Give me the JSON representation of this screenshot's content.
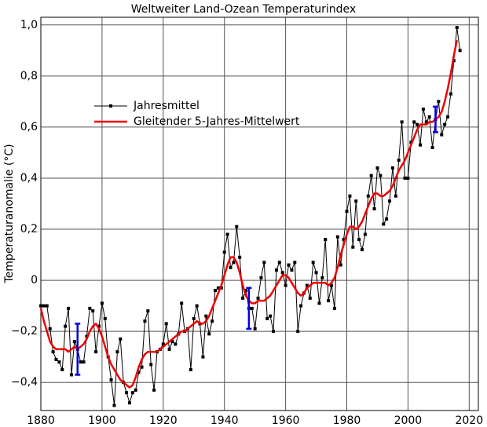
{
  "chart_data": {
    "type": "line",
    "title": "Weltweiter Land-Ozean Temperaturindex",
    "y_label": "Temperaturanomalie (°C)",
    "x": [
      1880,
      1881,
      1882,
      1883,
      1884,
      1885,
      1886,
      1887,
      1888,
      1889,
      1890,
      1891,
      1892,
      1893,
      1894,
      1895,
      1896,
      1897,
      1898,
      1899,
      1900,
      1901,
      1902,
      1903,
      1904,
      1905,
      1906,
      1907,
      1908,
      1909,
      1910,
      1911,
      1912,
      1913,
      1914,
      1915,
      1916,
      1917,
      1918,
      1919,
      1920,
      1921,
      1922,
      1923,
      1924,
      1925,
      1926,
      1927,
      1928,
      1929,
      1930,
      1931,
      1932,
      1933,
      1934,
      1935,
      1936,
      1937,
      1938,
      1939,
      1940,
      1941,
      1942,
      1943,
      1944,
      1945,
      1946,
      1947,
      1948,
      1949,
      1950,
      1951,
      1952,
      1953,
      1954,
      1955,
      1956,
      1957,
      1958,
      1959,
      1960,
      1961,
      1962,
      1963,
      1964,
      1965,
      1966,
      1967,
      1968,
      1969,
      1970,
      1971,
      1972,
      1973,
      1974,
      1975,
      1976,
      1977,
      1978,
      1979,
      1980,
      1981,
      1982,
      1983,
      1984,
      1985,
      1986,
      1987,
      1988,
      1989,
      1990,
      1991,
      1992,
      1993,
      1994,
      1995,
      1996,
      1997,
      1998,
      1999,
      2000,
      2001,
      2002,
      2003,
      2004,
      2005,
      2006,
      2007,
      2008,
      2009,
      2010,
      2011,
      2012,
      2013,
      2014,
      2015,
      2016,
      2017
    ],
    "series": [
      {
        "name": "Jahresmittel",
        "color": "#000000",
        "markers": true,
        "values": [
          -0.1,
          -0.1,
          -0.1,
          -0.19,
          -0.28,
          -0.31,
          -0.32,
          -0.35,
          -0.18,
          -0.11,
          -0.37,
          -0.24,
          -0.27,
          -0.32,
          -0.32,
          -0.22,
          -0.11,
          -0.12,
          -0.28,
          -0.18,
          -0.09,
          -0.15,
          -0.3,
          -0.39,
          -0.49,
          -0.28,
          -0.23,
          -0.4,
          -0.44,
          -0.48,
          -0.44,
          -0.43,
          -0.36,
          -0.34,
          -0.16,
          -0.12,
          -0.33,
          -0.43,
          -0.28,
          -0.27,
          -0.25,
          -0.17,
          -0.27,
          -0.24,
          -0.25,
          -0.21,
          -0.09,
          -0.2,
          -0.19,
          -0.35,
          -0.15,
          -0.1,
          -0.17,
          -0.3,
          -0.14,
          -0.21,
          -0.16,
          -0.04,
          -0.03,
          -0.03,
          0.11,
          0.18,
          0.05,
          0.07,
          0.21,
          0.09,
          -0.07,
          -0.04,
          -0.11,
          -0.11,
          -0.19,
          -0.07,
          0.01,
          0.07,
          -0.15,
          -0.14,
          -0.2,
          0.04,
          0.07,
          0.03,
          -0.02,
          0.06,
          0.04,
          0.07,
          -0.2,
          -0.1,
          -0.05,
          -0.02,
          -0.07,
          0.07,
          0.03,
          -0.09,
          0.01,
          0.16,
          -0.08,
          -0.02,
          -0.11,
          0.17,
          0.06,
          0.16,
          0.27,
          0.33,
          0.13,
          0.31,
          0.16,
          0.12,
          0.18,
          0.33,
          0.41,
          0.28,
          0.44,
          0.41,
          0.22,
          0.24,
          0.31,
          0.44,
          0.33,
          0.47,
          0.62,
          0.4,
          0.4,
          0.54,
          0.62,
          0.61,
          0.53,
          0.67,
          0.62,
          0.64,
          0.52,
          0.63,
          0.7,
          0.57,
          0.61,
          0.64,
          0.73,
          0.86,
          0.99,
          0.9
        ]
      },
      {
        "name": "Gleitender 5-Jahres-Mittelwert",
        "color": "#ee0000",
        "markers": false,
        "values": [
          -0.11,
          -0.16,
          -0.2,
          -0.24,
          -0.26,
          -0.27,
          -0.27,
          -0.27,
          -0.27,
          -0.28,
          -0.27,
          -0.26,
          -0.27,
          -0.26,
          -0.25,
          -0.23,
          -0.2,
          -0.18,
          -0.17,
          -0.19,
          -0.22,
          -0.26,
          -0.3,
          -0.33,
          -0.35,
          -0.37,
          -0.39,
          -0.4,
          -0.41,
          -0.42,
          -0.41,
          -0.38,
          -0.34,
          -0.31,
          -0.29,
          -0.28,
          -0.28,
          -0.28,
          -0.28,
          -0.27,
          -0.26,
          -0.25,
          -0.24,
          -0.23,
          -0.22,
          -0.21,
          -0.2,
          -0.2,
          -0.19,
          -0.18,
          -0.17,
          -0.16,
          -0.17,
          -0.17,
          -0.16,
          -0.14,
          -0.11,
          -0.08,
          -0.05,
          -0.02,
          0.02,
          0.06,
          0.09,
          0.09,
          0.07,
          0.03,
          -0.02,
          -0.06,
          -0.08,
          -0.09,
          -0.09,
          -0.08,
          -0.08,
          -0.08,
          -0.07,
          -0.06,
          -0.04,
          -0.02,
          0.0,
          0.02,
          0.02,
          0.01,
          -0.01,
          -0.03,
          -0.05,
          -0.06,
          -0.05,
          -0.03,
          -0.02,
          -0.01,
          -0.01,
          -0.01,
          -0.01,
          -0.01,
          -0.02,
          -0.01,
          0.01,
          0.05,
          0.1,
          0.14,
          0.18,
          0.21,
          0.21,
          0.2,
          0.21,
          0.23,
          0.26,
          0.29,
          0.32,
          0.34,
          0.34,
          0.33,
          0.33,
          0.34,
          0.35,
          0.37,
          0.4,
          0.43,
          0.45,
          0.47,
          0.5,
          0.53,
          0.56,
          0.59,
          0.61,
          0.61,
          0.61,
          0.62,
          0.62,
          0.63,
          0.64,
          0.66,
          0.7,
          0.75,
          0.81,
          0.88,
          0.94,
          null
        ]
      }
    ],
    "error_bars": [
      {
        "x": 1892,
        "value": -0.27,
        "error": 0.1
      },
      {
        "x": 1948,
        "value": -0.11,
        "error": 0.08
      },
      {
        "x": 2009,
        "value": 0.63,
        "error": 0.05
      }
    ],
    "error_color": "#0000dd",
    "xlim": [
      1880,
      2023
    ],
    "ylim": [
      -0.51,
      1.03
    ],
    "xticks": [
      1880,
      1900,
      1920,
      1940,
      1960,
      1980,
      2000,
      2020
    ],
    "yticks": [
      {
        "value": 1.0,
        "label": "1,0"
      },
      {
        "value": 0.8,
        "label": "0,8"
      },
      {
        "value": 0.6,
        "label": "0,6"
      },
      {
        "value": 0.4,
        "label": "0,4"
      },
      {
        "value": 0.2,
        "label": "0,2"
      },
      0,
      {
        "value": -0.2,
        "label": "−0,2"
      },
      {
        "value": -0.4,
        "label": "−0,4"
      }
    ],
    "grid": true,
    "legend": "upper left"
  }
}
